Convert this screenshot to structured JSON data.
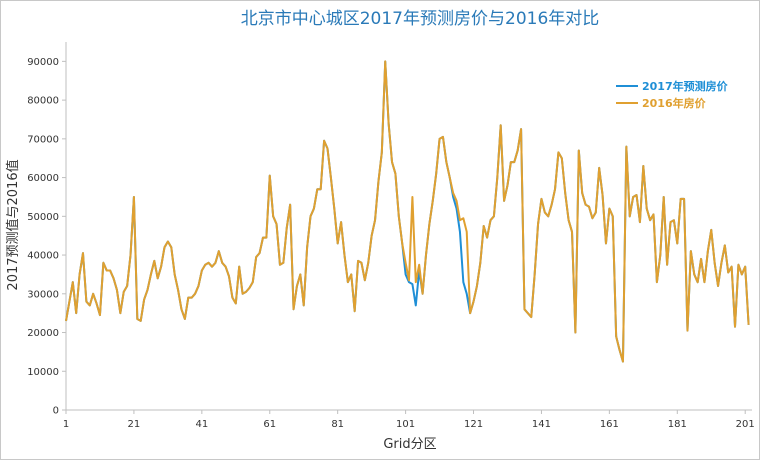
{
  "chart_data": {
    "type": "line",
    "title": "北京市中心城区2017年预测房价与2016年对比",
    "xlabel": "Grid分区",
    "ylabel": "2017预测值与2016值",
    "xlim": [
      1,
      203
    ],
    "ylim": [
      0,
      95000
    ],
    "x_ticks": [
      1,
      21,
      41,
      61,
      81,
      101,
      121,
      141,
      161,
      181,
      201
    ],
    "y_ticks": [
      0,
      10000,
      20000,
      30000,
      40000,
      50000,
      60000,
      70000,
      80000,
      90000
    ],
    "y_tick_labels": [
      "0",
      "10000",
      "20000",
      "30000",
      "40000",
      "50000",
      "60000",
      "70000",
      "80000",
      "90000"
    ],
    "grid": false,
    "legend_position": "top-right",
    "series": [
      {
        "name": "2017年预测房价",
        "color": "#1f8fd6",
        "values": [
          23000,
          28000,
          33000,
          25000,
          35000,
          40500,
          28000,
          27000,
          30000,
          27500,
          24500,
          38000,
          36000,
          36000,
          34000,
          31000,
          25000,
          30500,
          32000,
          40000,
          55000,
          23500,
          23000,
          28500,
          31000,
          35000,
          38500,
          34000,
          37000,
          42000,
          43500,
          42000,
          35000,
          31000,
          26000,
          23500,
          29000,
          29000,
          30000,
          32000,
          36000,
          37500,
          38000,
          37000,
          38000,
          41000,
          38000,
          37000,
          34500,
          29000,
          27500,
          37000,
          30000,
          30500,
          31500,
          33000,
          39500,
          40500,
          44500,
          44500,
          60500,
          50000,
          48000,
          37500,
          38000,
          47000,
          53000,
          26000,
          32000,
          35000,
          27000,
          42000,
          50000,
          52000,
          57000,
          57000,
          69500,
          67500,
          60000,
          52000,
          43000,
          48500,
          40000,
          33000,
          35000,
          25500,
          38500,
          38000,
          33500,
          38000,
          45000,
          49000,
          59000,
          66500,
          90000,
          74000,
          64000,
          61000,
          50000,
          43000,
          35000,
          33000,
          32500,
          27000,
          36000,
          30000,
          40000,
          48000,
          54000,
          61000,
          70000,
          70500,
          64000,
          60000,
          55000,
          52000,
          46000,
          33000,
          30000,
          25000,
          28000,
          32000,
          38000,
          47500,
          44500,
          49000,
          50000,
          60000,
          73500,
          54000,
          58000,
          64000,
          64000,
          67000,
          72500,
          26000,
          25000,
          24000,
          35000,
          48000,
          54500,
          51000,
          50000,
          53000,
          57000,
          66500,
          65000,
          56000,
          49000,
          46000,
          20000,
          67000,
          56000,
          53000,
          52500,
          49500,
          51000,
          62500,
          55500,
          43000,
          52000,
          50000,
          19000,
          15500,
          12500,
          68000,
          50000,
          55000,
          55500,
          48500,
          63000,
          52000,
          49000,
          50500,
          33000,
          40000,
          55000,
          37500,
          48500,
          49000,
          43000,
          54500,
          54500,
          20500,
          41000,
          35000,
          33000,
          39000,
          33000,
          41000,
          46500,
          38000,
          32000,
          38000,
          42500,
          35500,
          37000,
          21500,
          37500,
          35000,
          37000,
          22000
        ]
      },
      {
        "name": "2016年房价",
        "color": "#e0a030",
        "values": [
          23000,
          28000,
          33000,
          25000,
          35000,
          40500,
          28000,
          27000,
          30000,
          27500,
          24500,
          38000,
          36000,
          36000,
          34000,
          31000,
          25000,
          30500,
          32000,
          40000,
          55000,
          23500,
          23000,
          28500,
          31000,
          35000,
          38500,
          34000,
          37000,
          42000,
          43500,
          42000,
          35000,
          31000,
          26000,
          23500,
          29000,
          29000,
          30000,
          32000,
          36000,
          37500,
          38000,
          37000,
          38000,
          41000,
          38000,
          37000,
          34500,
          29000,
          27500,
          37000,
          30000,
          30500,
          31500,
          33000,
          39500,
          40500,
          44500,
          44500,
          60500,
          50000,
          48000,
          37500,
          38000,
          47000,
          53000,
          26000,
          32000,
          35000,
          27000,
          42000,
          50000,
          52000,
          57000,
          57000,
          69500,
          67500,
          60000,
          52000,
          43000,
          48500,
          40000,
          33000,
          35000,
          25500,
          38500,
          38000,
          33500,
          38000,
          45000,
          49000,
          59000,
          66500,
          90000,
          74000,
          64000,
          61000,
          50000,
          43000,
          38000,
          33500,
          55000,
          33000,
          37500,
          30000,
          40000,
          48000,
          54000,
          61000,
          70000,
          70500,
          64000,
          60000,
          56000,
          54000,
          49000,
          49500,
          46000,
          25000,
          28000,
          32000,
          38000,
          47500,
          44500,
          49000,
          50000,
          60000,
          73500,
          54000,
          58000,
          64000,
          64000,
          67000,
          72500,
          26000,
          25000,
          24000,
          35000,
          48000,
          54500,
          51000,
          50000,
          53000,
          57000,
          66500,
          65000,
          56000,
          49000,
          46000,
          20000,
          67000,
          56000,
          53000,
          52500,
          49500,
          51000,
          62500,
          55500,
          43000,
          52000,
          50000,
          19000,
          15500,
          12500,
          68000,
          50000,
          55000,
          55500,
          48500,
          63000,
          52000,
          49000,
          50500,
          33000,
          40000,
          55000,
          37500,
          48500,
          49000,
          43000,
          54500,
          54500,
          20500,
          41000,
          35000,
          33000,
          39000,
          33000,
          41000,
          46500,
          38000,
          32000,
          38000,
          42500,
          35500,
          37000,
          21500,
          37500,
          35000,
          37000,
          22000
        ]
      }
    ]
  }
}
